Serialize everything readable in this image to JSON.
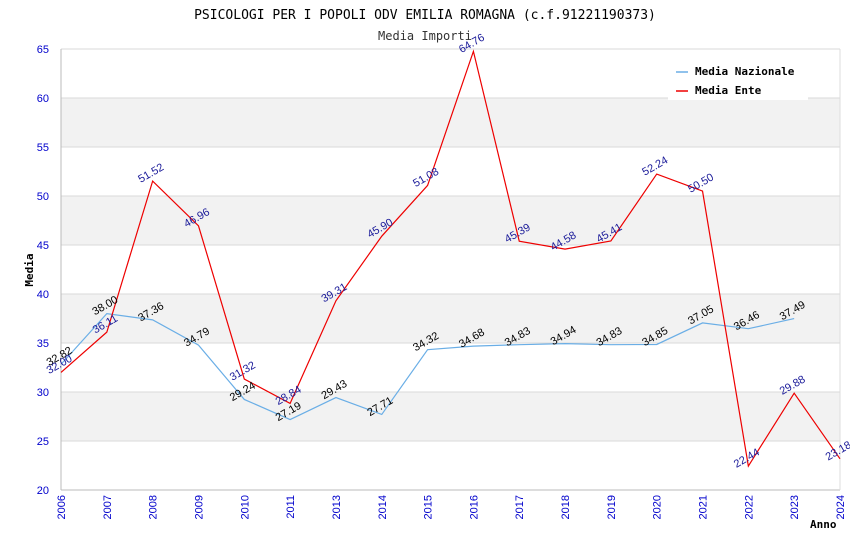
{
  "chart_data": {
    "type": "line",
    "title": "PSICOLOGI PER I POPOLI ODV EMILIA ROMAGNA (c.f.91221190373)",
    "subtitle": "Media Importi",
    "xlabel": "Anno",
    "ylabel": "Media",
    "ylim": [
      20,
      65
    ],
    "yticks": [
      20,
      25,
      30,
      35,
      40,
      45,
      50,
      55,
      60,
      65
    ],
    "categories": [
      "2006",
      "2007",
      "2008",
      "2009",
      "2010",
      "2011",
      "2013",
      "2014",
      "2015",
      "2016",
      "2017",
      "2018",
      "2019",
      "2020",
      "2021",
      "2022",
      "2023",
      "2024"
    ],
    "grid": true,
    "legend_position": "top-right",
    "series": [
      {
        "name": "Media Nazionale",
        "color": "#6aaee6",
        "label_color": "#000000",
        "values": [
          32.82,
          38.0,
          37.36,
          34.79,
          29.24,
          27.19,
          29.43,
          27.71,
          34.32,
          34.68,
          34.83,
          34.94,
          34.83,
          34.85,
          37.05,
          36.46,
          37.49,
          null
        ],
        "labels": [
          "32.82",
          "38.00",
          "37.36",
          "34.79",
          "29.24",
          "27.19",
          "29.43",
          "27.71",
          "34.32",
          "34.68",
          "34.83",
          "34.94",
          "34.83",
          "34.85",
          "37.05",
          "36.46",
          "37.49",
          ""
        ]
      },
      {
        "name": "Media Ente",
        "color": "#ee0000",
        "label_color": "#1a1a99",
        "values": [
          32.0,
          36.11,
          51.52,
          46.96,
          31.32,
          28.84,
          39.31,
          45.9,
          51.08,
          64.76,
          45.39,
          44.58,
          45.41,
          52.24,
          50.5,
          22.44,
          29.88,
          23.18
        ],
        "labels": [
          "32.00",
          "36.11",
          "51.52",
          "46.96",
          "31.32",
          "28.84",
          "39.31",
          "45.90",
          "51.08",
          "64.76",
          "45.39",
          "44.58",
          "45.41",
          "52.24",
          "50.50",
          "22.44",
          "29.88",
          "23.18"
        ]
      }
    ]
  }
}
